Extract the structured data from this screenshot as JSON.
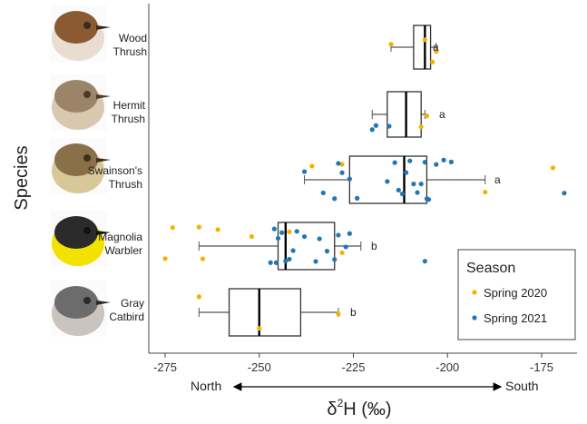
{
  "chart_data": {
    "type": "boxplot",
    "xlabel_base": "δ",
    "xlabel_sup": "2",
    "xlabel_rest": "H (‰)",
    "ylabel": "Species",
    "xlim": [
      -280,
      -165
    ],
    "x_ticks": [
      -275,
      -250,
      -225,
      -200,
      -175
    ],
    "x_tick_labels": [
      "-275",
      "-250",
      "-225",
      "-200",
      "-175"
    ],
    "direction": {
      "left": "North",
      "right": "South"
    },
    "legend": {
      "title": "Season",
      "entries": [
        {
          "name": "Spring 2020",
          "color": "#f0b400"
        },
        {
          "name": "Spring 2021",
          "color": "#1f77b4"
        }
      ],
      "position": "bottom-right"
    },
    "species": [
      {
        "name": "Wood Thrush",
        "line1": "Wood",
        "line2": "Thrush",
        "letter": "a",
        "box": {
          "whisker_low": -215,
          "q1": -209,
          "median": -206,
          "q3": -204.5,
          "whisker_high": -203
        },
        "spring_2020": [
          -215,
          -206,
          -204,
          -203
        ],
        "spring_2021": []
      },
      {
        "name": "Hermit Thrush",
        "line1": "Hermit",
        "line2": "Thrush",
        "letter": "a",
        "box": {
          "whisker_low": -220,
          "q1": -216,
          "median": -211,
          "q3": -207,
          "whisker_high": -206
        },
        "spring_2020": [
          -207,
          -205.5
        ],
        "spring_2021": [
          -220,
          -219,
          -215.5
        ]
      },
      {
        "name": "Swainson's Thrush",
        "line1": "Swainson's",
        "line2": "Thrush",
        "letter": "a",
        "box": {
          "whisker_low": -238,
          "q1": -226,
          "median": -211.5,
          "q3": -205.5,
          "whisker_high": -190
        },
        "spring_2020": [
          -236,
          -228,
          -190,
          -172
        ],
        "spring_2021": [
          -238,
          -233,
          -230,
          -229,
          -228,
          -226,
          -224,
          -216,
          -214,
          -213,
          -212,
          -211,
          -210,
          -209,
          -208,
          -207,
          -206,
          -205.5,
          -205,
          -203,
          -201,
          -199,
          -169
        ]
      },
      {
        "name": "Magnolia Warbler",
        "line1": "Magnolia",
        "line2": "Warbler",
        "letter": "b",
        "box": {
          "whisker_low": -266,
          "q1": -245,
          "median": -243,
          "q3": -230,
          "whisker_high": -223
        },
        "spring_2020": [
          -275,
          -273,
          -266,
          -265,
          -261,
          -252,
          -242,
          -228
        ],
        "spring_2021": [
          -247,
          -246,
          -245.5,
          -245,
          -244,
          -243,
          -242,
          -241,
          -240,
          -238,
          -235,
          -234,
          -232,
          -230,
          -229,
          -227,
          -226,
          -206
        ]
      },
      {
        "name": "Gray Catbird",
        "line1": "Gray",
        "line2": "Catbird",
        "letter": "b",
        "box": {
          "whisker_low": -266,
          "q1": -258,
          "median": -250,
          "q3": -239,
          "whisker_high": -229
        },
        "spring_2020": [
          -266,
          -250,
          -229
        ],
        "spring_2021": []
      }
    ]
  }
}
